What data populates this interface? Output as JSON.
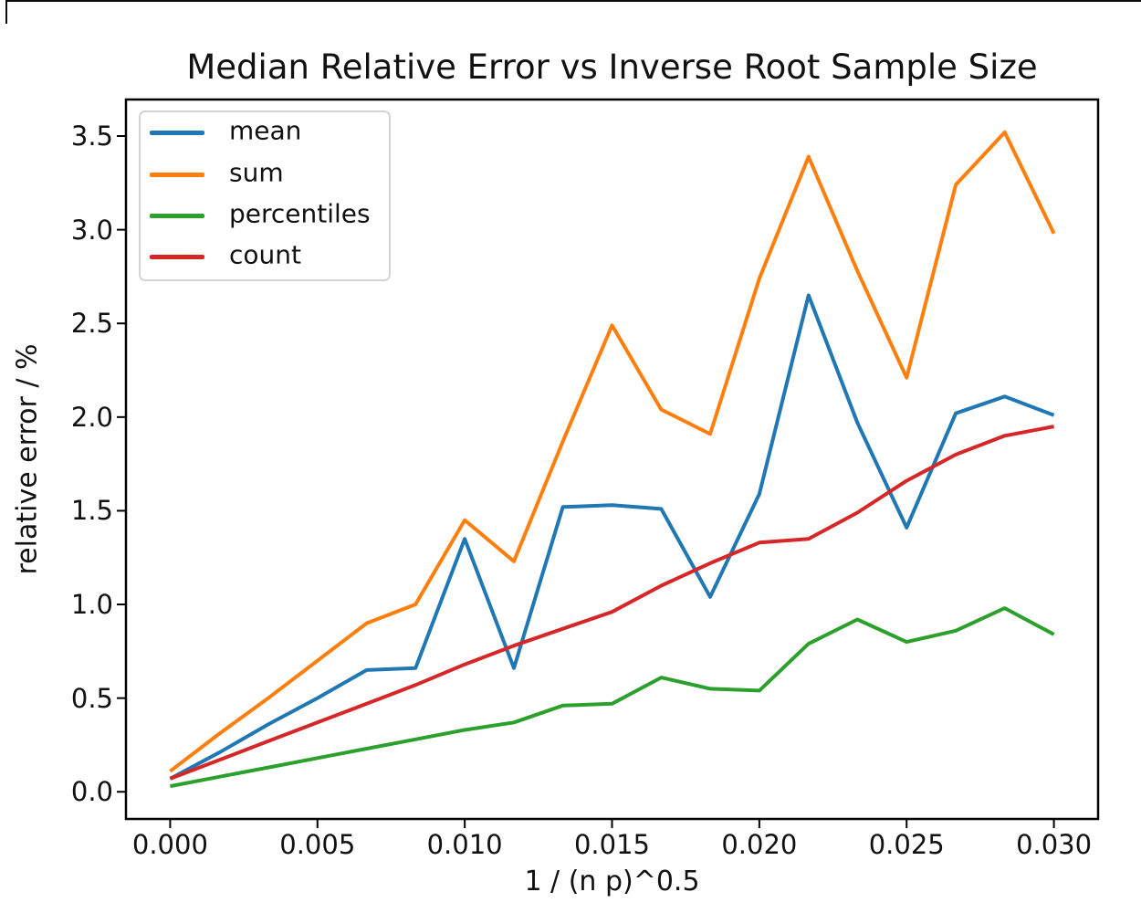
{
  "chart_data": {
    "type": "line",
    "title": "Median Relative Error vs Inverse Root Sample Size",
    "xlabel": "1 / (n p)^0.5",
    "ylabel": "relative error / %",
    "grid": false,
    "legend_position": "upper left",
    "xlim": [
      -0.0015,
      0.0315
    ],
    "ylim": [
      -0.145,
      3.695
    ],
    "x_ticks": {
      "values": [
        0.0,
        0.005,
        0.01,
        0.015,
        0.02,
        0.025,
        0.03
      ],
      "labels": [
        "0.000",
        "0.005",
        "0.010",
        "0.015",
        "0.020",
        "0.025",
        "0.030"
      ]
    },
    "y_ticks": {
      "values": [
        0.0,
        0.5,
        1.0,
        1.5,
        2.0,
        2.5,
        3.0,
        3.5
      ],
      "labels": [
        "0.0",
        "0.5",
        "1.0",
        "1.5",
        "2.0",
        "2.5",
        "3.0",
        "3.5"
      ]
    },
    "x": [
      0.0,
      0.00167,
      0.00333,
      0.005,
      0.00667,
      0.00833,
      0.01,
      0.01167,
      0.01333,
      0.015,
      0.01667,
      0.01833,
      0.02,
      0.02167,
      0.02333,
      0.025,
      0.02667,
      0.02833,
      0.03
    ],
    "series": [
      {
        "name": "mean",
        "color": "#1f77b4",
        "values": [
          0.07,
          0.21,
          0.36,
          0.5,
          0.65,
          0.66,
          1.35,
          0.66,
          1.52,
          1.53,
          1.51,
          1.04,
          1.59,
          2.65,
          1.97,
          1.41,
          2.02,
          2.11,
          2.01
        ]
      },
      {
        "name": "sum",
        "color": "#ff7f0e",
        "values": [
          0.11,
          0.31,
          0.5,
          0.7,
          0.9,
          1.0,
          1.45,
          1.23,
          1.87,
          2.49,
          2.04,
          1.91,
          2.74,
          3.39,
          2.78,
          2.21,
          3.24,
          3.52,
          2.98
        ]
      },
      {
        "name": "percentiles",
        "color": "#2ca02c",
        "values": [
          0.03,
          0.08,
          0.13,
          0.18,
          0.23,
          0.28,
          0.33,
          0.37,
          0.46,
          0.47,
          0.61,
          0.55,
          0.54,
          0.79,
          0.92,
          0.8,
          0.86,
          0.98,
          0.84
        ]
      },
      {
        "name": "count",
        "color": "#d62728",
        "values": [
          0.07,
          0.17,
          0.27,
          0.37,
          0.47,
          0.57,
          0.68,
          0.78,
          0.87,
          0.96,
          1.1,
          1.22,
          1.33,
          1.35,
          1.49,
          1.66,
          1.8,
          1.9,
          1.95
        ]
      }
    ],
    "axis_color": "#000000",
    "text_color": "#111111"
  }
}
